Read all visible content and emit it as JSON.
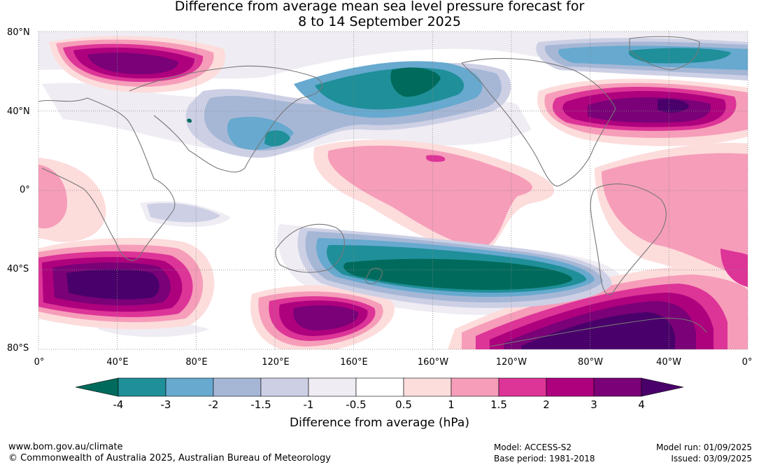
{
  "title": {
    "line1": "Difference from average mean sea level pressure forecast for",
    "line2": "8 to 14 September 2025"
  },
  "map": {
    "lat_labels": [
      "80°N",
      "40°N",
      "0°",
      "40°S",
      "80°S"
    ],
    "lon_labels": [
      "0°",
      "40°E",
      "80°E",
      "120°E",
      "160°E",
      "160°W",
      "120°W",
      "80°W",
      "40°W",
      "0°"
    ]
  },
  "colorbar": {
    "colors": [
      "#006b5c",
      "#1f8f99",
      "#67a9cf",
      "#a6b7d6",
      "#cdd0e5",
      "#efecf3",
      "#ffffff",
      "#fddcdc",
      "#f69db9",
      "#dd3497",
      "#ae017e",
      "#7a0177",
      "#49006a"
    ],
    "tick_labels": [
      "-4",
      "-3",
      "-2",
      "-1.5",
      "-1",
      "-0.5",
      "0.5",
      "1",
      "1.5",
      "2",
      "3",
      "4"
    ],
    "title": "Difference from average (hPa)"
  },
  "footer": {
    "website": "www.bom.gov.au/climate",
    "copyright": "© Commonwealth of Australia 2025, Australian Bureau of Meteorology",
    "model": "Model: ACCESS-S2",
    "base_period": "Base period: 1981-2018",
    "model_run": "Model run: 01/09/2025",
    "issued": "Issued: 03/09/2025"
  }
}
